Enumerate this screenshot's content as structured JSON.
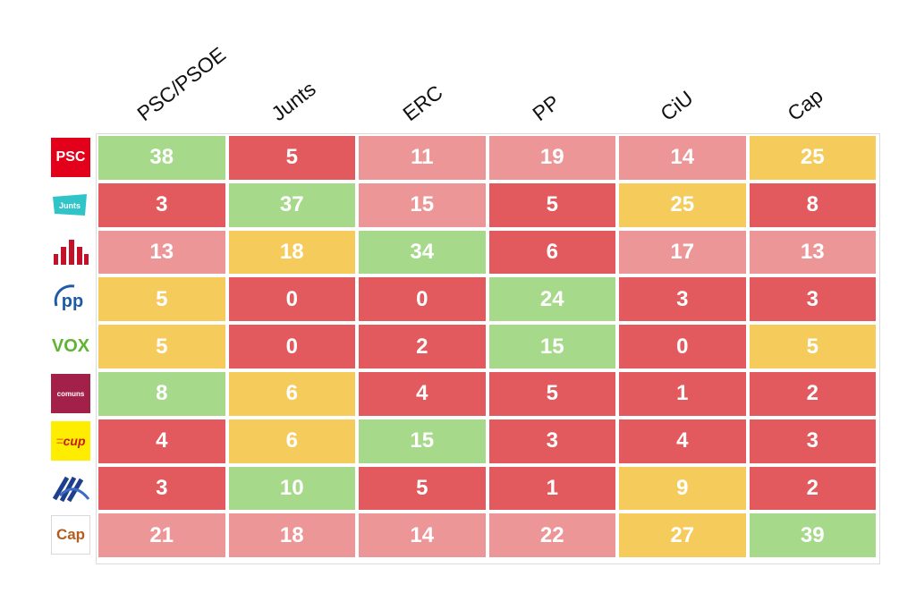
{
  "chart_data": {
    "type": "heatmap",
    "columns": [
      "PSC/PSOE",
      "Junts",
      "ERC",
      "PP",
      "CiU",
      "Cap"
    ],
    "rows": [
      {
        "logo": "PSC logo",
        "logo_text": "PSC",
        "values": [
          38,
          5,
          11,
          19,
          14,
          25
        ]
      },
      {
        "logo": "Junts logo",
        "logo_text": "Junts",
        "values": [
          3,
          37,
          15,
          5,
          25,
          8
        ]
      },
      {
        "logo": "ERC logo",
        "logo_text": "",
        "values": [
          13,
          18,
          34,
          6,
          17,
          13
        ]
      },
      {
        "logo": "PP logo",
        "logo_text": "PP",
        "values": [
          5,
          0,
          0,
          24,
          3,
          3
        ]
      },
      {
        "logo": "VOX logo",
        "logo_text": "VOX",
        "values": [
          5,
          0,
          2,
          15,
          0,
          5
        ]
      },
      {
        "logo": "Comuns logo",
        "logo_text": "comuns",
        "values": [
          8,
          6,
          4,
          5,
          1,
          2
        ]
      },
      {
        "logo": "CUP logo",
        "logo_text": "cup",
        "values": [
          4,
          6,
          15,
          3,
          4,
          3
        ]
      },
      {
        "logo": "Cs logo",
        "logo_text": "",
        "values": [
          3,
          10,
          5,
          1,
          9,
          2
        ]
      },
      {
        "logo": "Cap logo",
        "logo_text": "Cap",
        "values": [
          21,
          18,
          14,
          22,
          27,
          39
        ]
      }
    ],
    "colors": {
      "high": "#a6d98a",
      "mid": "#f5cb5c",
      "low_mid": "#ec9698",
      "low": "#e25a5d"
    }
  }
}
